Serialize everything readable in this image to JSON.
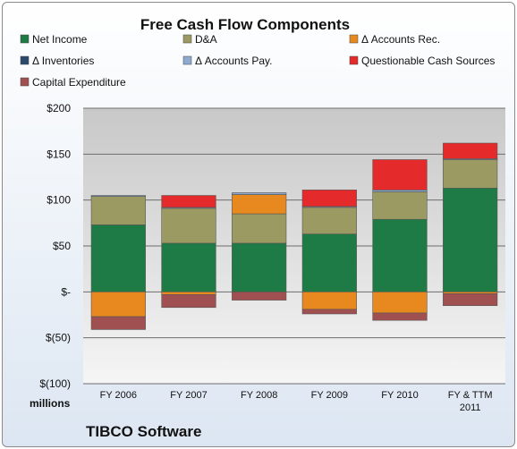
{
  "chart_data": {
    "type": "bar",
    "stacked": true,
    "title": "Free Cash Flow Components",
    "categories": [
      "FY 2006",
      "FY 2007",
      "FY 2008",
      "FY 2009",
      "FY 2010",
      "FY & TTM 2011"
    ],
    "ylim": [
      -100,
      200
    ],
    "yticks": [
      -100,
      -50,
      0,
      50,
      100,
      150,
      200
    ],
    "ytick_labels": [
      "$(100)",
      "$(50)",
      "$-",
      "$50",
      "$100",
      "$150",
      "$200"
    ],
    "unit_label": "millions",
    "grid": true,
    "legend_position": "top",
    "series": [
      {
        "name": "Net Income",
        "color": "#1e7b45",
        "values": [
          73,
          53,
          53,
          63,
          79,
          113
        ]
      },
      {
        "name": "D&A",
        "color": "#9b9a62",
        "values": [
          31,
          38,
          32,
          29,
          30,
          31
        ]
      },
      {
        "name": "Δ Accounts Rec.",
        "color": "#e7891f",
        "values": [
          -27,
          -3,
          21,
          -19,
          -23,
          -2
        ]
      },
      {
        "name": "Δ Inventories",
        "color": "#2b4a6b",
        "values": [
          0,
          0,
          0,
          0,
          0,
          0
        ]
      },
      {
        "name": "Δ Accounts Pay.",
        "color": "#8eaad0",
        "values": [
          1,
          1,
          2,
          1,
          2,
          1
        ]
      },
      {
        "name": "Questionable Cash Sources",
        "color": "#e42a2a",
        "values": [
          0,
          13,
          0,
          18,
          33,
          17
        ]
      },
      {
        "name": "Capital Expenditure",
        "color": "#a05050",
        "values": [
          -14,
          -14,
          -9,
          -5,
          -8,
          -13
        ]
      }
    ]
  },
  "footer": "TIBCO Software"
}
